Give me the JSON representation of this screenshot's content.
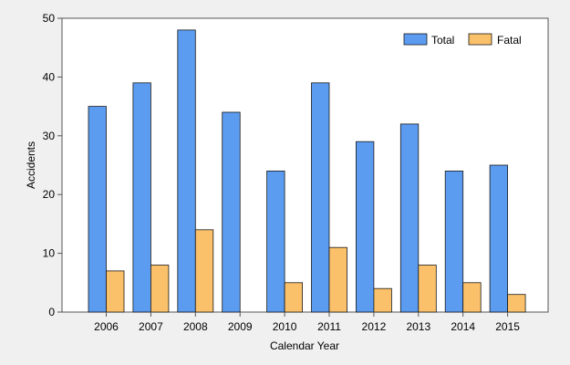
{
  "chart_data": {
    "type": "bar",
    "title": "",
    "xlabel": "Calendar Year",
    "ylabel": "Accidents",
    "ylim": [
      0,
      50
    ],
    "yticks": [
      0,
      10,
      20,
      30,
      40,
      50
    ],
    "categories": [
      "2006",
      "2007",
      "2008",
      "2009",
      "2010",
      "2011",
      "2012",
      "2013",
      "2014",
      "2015"
    ],
    "series": [
      {
        "name": "Total",
        "color": "#5b9bf0",
        "values": [
          35,
          39,
          48,
          34,
          24,
          39,
          29,
          32,
          24,
          25
        ]
      },
      {
        "name": "Fatal",
        "color": "#fbc16a",
        "values": [
          7,
          8,
          14,
          0,
          5,
          11,
          4,
          8,
          5,
          3
        ]
      }
    ],
    "legend": "top-right",
    "grid": false
  }
}
